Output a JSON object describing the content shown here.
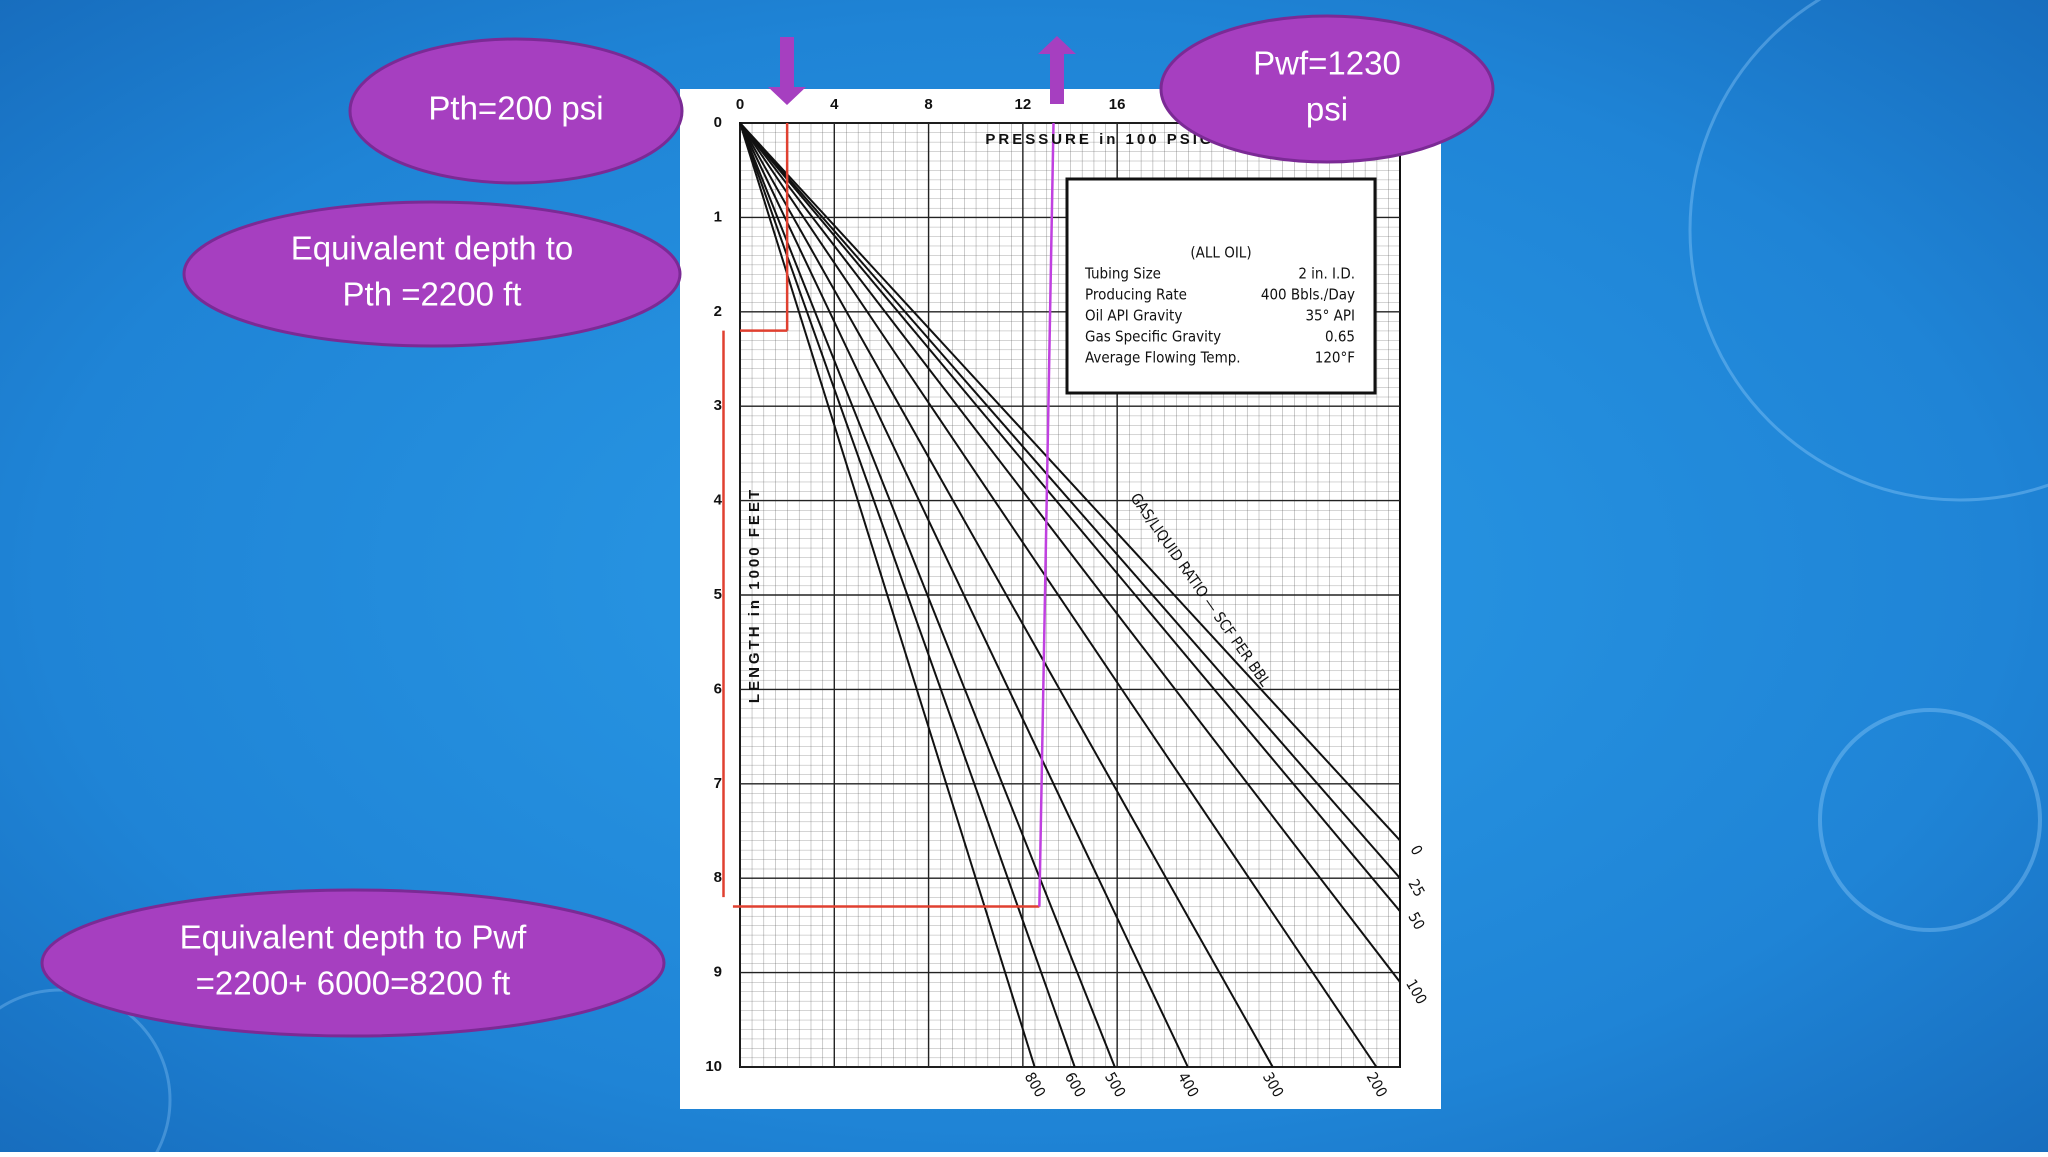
{
  "callouts": [
    {
      "lines": [
        "Pth=200 psi"
      ]
    },
    {
      "lines": [
        "Equivalent depth to",
        "Pth =2200 ft"
      ]
    },
    {
      "lines": [
        "Pwf=1230",
        "psi"
      ]
    },
    {
      "lines": [
        "Equivalent depth to Pwf",
        "=2200+ 6000=8200 ft"
      ]
    }
  ],
  "chart_data": {
    "type": "line",
    "x_label": "PRESSURE in 100 PSIG",
    "y_label": "LENGTH in 1000 FEET",
    "curve_title": "GAS/LIQUID RATIO — SCF PER BBL",
    "xlim": [
      0,
      28
    ],
    "xticks": [
      0,
      4,
      8,
      12,
      16
    ],
    "ylim": [
      0,
      10
    ],
    "yticks": [
      0,
      1,
      2,
      3,
      4,
      5,
      6,
      7,
      8,
      9,
      10
    ],
    "y_reversed": true,
    "grid": true,
    "legend": {
      "title": "(ALL OIL)",
      "rows": [
        [
          "Tubing Size",
          "2 in. I.D."
        ],
        [
          "Producing Rate",
          "400 Bbls./Day"
        ],
        [
          "Oil API Gravity",
          "35° API"
        ],
        [
          "Gas Specific Gravity",
          "0.65"
        ],
        [
          "Average Flowing Temp.",
          "120°F"
        ]
      ]
    },
    "series": [
      {
        "name": "0",
        "color": "#111111",
        "x": [
          0,
          28
        ],
        "values": [
          0,
          7.6
        ]
      },
      {
        "name": "25",
        "color": "#111111",
        "x": [
          0,
          28
        ],
        "values": [
          0,
          8.0
        ]
      },
      {
        "name": "50",
        "color": "#111111",
        "x": [
          0,
          28
        ],
        "values": [
          0,
          8.35
        ]
      },
      {
        "name": "100",
        "color": "#111111",
        "x": [
          0,
          28
        ],
        "values": [
          0,
          9.1
        ]
      },
      {
        "name": "200",
        "color": "#111111",
        "x": [
          0,
          27
        ],
        "values": [
          0,
          10
        ]
      },
      {
        "name": "300",
        "color": "#111111",
        "x": [
          0,
          22.6
        ],
        "values": [
          0,
          10
        ]
      },
      {
        "name": "400",
        "color": "#111111",
        "x": [
          0,
          19
        ],
        "values": [
          0,
          10
        ]
      },
      {
        "name": "500",
        "color": "#111111",
        "x": [
          0,
          15.9
        ],
        "values": [
          0,
          10
        ]
      },
      {
        "name": "600",
        "color": "#111111",
        "x": [
          0,
          14.2
        ],
        "values": [
          0,
          10
        ]
      },
      {
        "name": "800",
        "color": "#111111",
        "x": [
          0,
          12.5
        ],
        "values": [
          0,
          10
        ]
      }
    ],
    "guides": [
      {
        "color": "#e04030",
        "x": [
          2,
          2
        ],
        "values": [
          0,
          2.2
        ]
      },
      {
        "color": "#e04030",
        "x": [
          2,
          0
        ],
        "values": [
          2.2,
          2.2
        ]
      },
      {
        "color": "#e04030",
        "x": [
          -0.7,
          -0.7
        ],
        "values": [
          2.2,
          8.2
        ]
      },
      {
        "color": "#e04030",
        "x": [
          -0.3,
          12.7
        ],
        "values": [
          8.3,
          8.3
        ]
      },
      {
        "color": "#c040e0",
        "x": [
          12.7,
          13.3
        ],
        "values": [
          8.3,
          0
        ]
      }
    ]
  }
}
